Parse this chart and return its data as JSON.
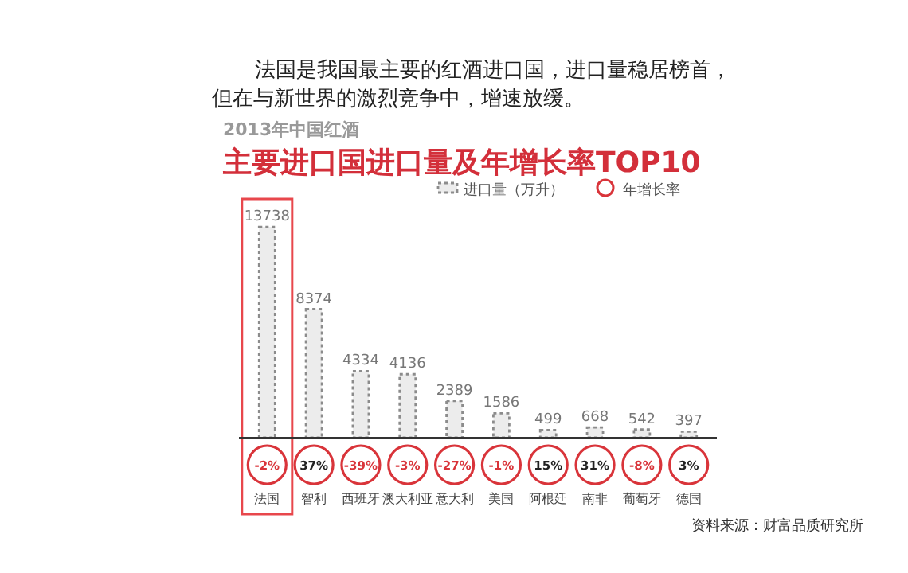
{
  "chart_data": [
    {
      "type": "bar",
      "title": "主要进口国进口量及年增长率TOP10",
      "subtitle": "2013年中国红酒",
      "annotations": [
        "法国是我国最主要的红酒进口国，进口量稳居榜首，但在与新世界的激烈竞争中，增速放缓。",
        "资料来源：财富品质研究所"
      ],
      "categories": [
        "法国",
        "智利",
        "西班牙",
        "澳大利亚",
        "意大利",
        "美国",
        "阿根廷",
        "南非",
        "葡萄牙",
        "德国"
      ],
      "series": [
        {
          "name": "进口量（万升）",
          "color": "#8c8c8c",
          "values": [
            13738,
            8374,
            4334,
            4136,
            2389,
            1586,
            499,
            668,
            542,
            397
          ]
        }
      ],
      "ylim": [
        0,
        14000
      ],
      "data_labels": true,
      "legend": "top",
      "line_style": "dotted"
    },
    {
      "type": "other",
      "series": [
        {
          "name": "年增长率",
          "color": "#d9343a",
          "values": [
            -2,
            37,
            -39,
            -3,
            -27,
            -1,
            15,
            31,
            -8,
            3
          ],
          "value_labels": [
            "-2%",
            "37%",
            "-39%",
            "-3%",
            "-27%",
            "-1%",
            "15%",
            "31%",
            "-8%",
            "3%"
          ]
        }
      ],
      "legend": "top"
    }
  ]
}
